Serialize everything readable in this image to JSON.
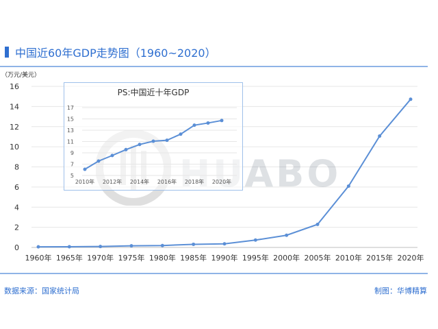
{
  "header": {
    "title": "中国近60年GDP走势图（1960~2020）"
  },
  "footer": {
    "source": "数据来源：国家统计局",
    "credit": "制图：华博精算"
  },
  "watermark": {
    "text": "HUABO"
  },
  "colors": {
    "accent": "#2f6fd0",
    "line": "#5b8fd6",
    "rule": "#8fb3e6"
  },
  "chart_data": [
    {
      "type": "line",
      "title": "",
      "ylabel": "（万元/美元）",
      "xlabel": "",
      "ylim": [
        0,
        16
      ],
      "yticks": [
        "0",
        "2",
        "4",
        "6",
        "8",
        "10",
        "12",
        "14",
        "16"
      ],
      "categories": [
        "1960年",
        "1965年",
        "1970年",
        "1975年",
        "1980年",
        "1985年",
        "1990年",
        "1995年",
        "2000年",
        "2005年",
        "2010年",
        "2015年",
        "2020年"
      ],
      "series": [
        {
          "values": [
            0.06,
            0.07,
            0.09,
            0.16,
            0.19,
            0.31,
            0.36,
            0.73,
            1.21,
            2.29,
            6.09,
            11.06,
            14.72
          ]
        }
      ],
      "grid": true
    },
    {
      "type": "line",
      "title": "PS:中国近十年GDP",
      "ylim": [
        5,
        17
      ],
      "yticks": [
        "5",
        "7",
        "9",
        "11",
        "13",
        "15",
        "17"
      ],
      "x": [
        2010,
        2011,
        2012,
        2013,
        2014,
        2015,
        2016,
        2017,
        2018,
        2019,
        2020
      ],
      "xticks": [
        "2010年",
        "2012年",
        "2014年",
        "2016年",
        "2018年",
        "2020年"
      ],
      "series": [
        {
          "values": [
            6.09,
            7.55,
            8.53,
            9.57,
            10.48,
            11.06,
            11.23,
            12.31,
            13.89,
            14.28,
            14.72
          ]
        }
      ],
      "grid": true
    }
  ]
}
